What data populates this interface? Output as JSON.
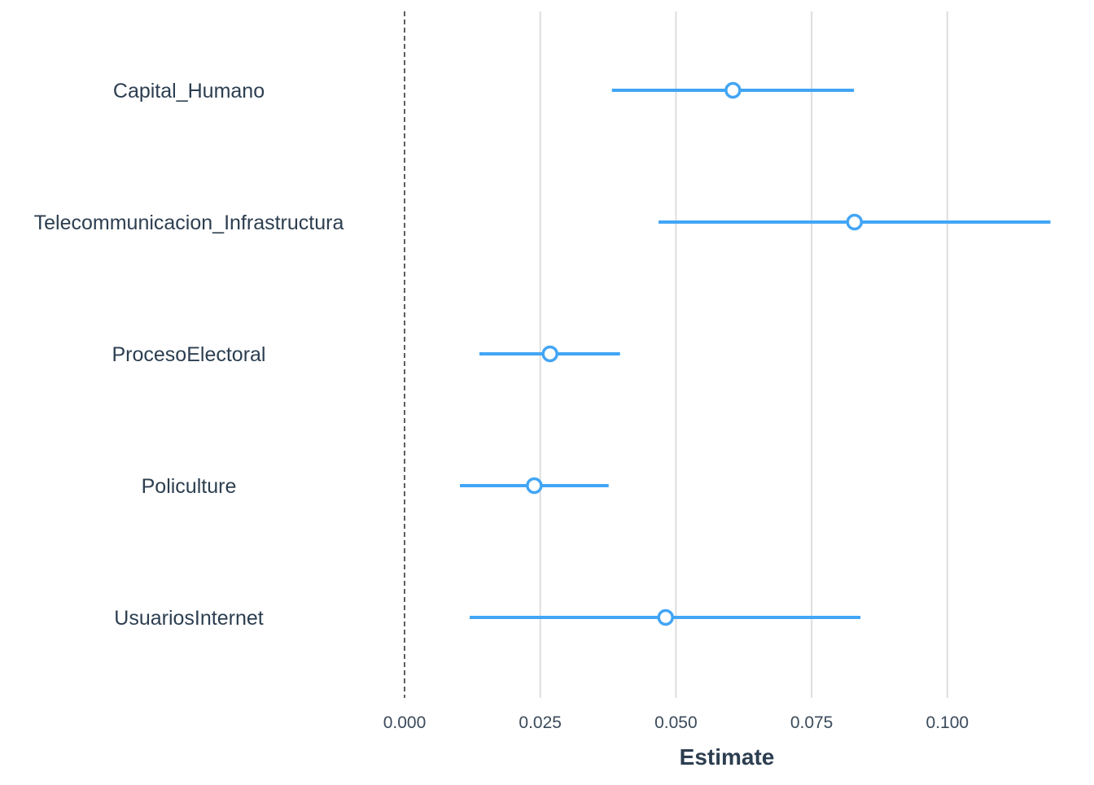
{
  "chart_data": {
    "type": "scatter",
    "subtype": "coefficient-plot",
    "title": "",
    "xlabel": "Estimate",
    "ylabel": "",
    "xlim": [
      0.0,
      0.1195
    ],
    "x_ticks": [
      "0.000",
      "0.025",
      "0.050",
      "0.075",
      "0.100"
    ],
    "x_tick_values": [
      0.0,
      0.025,
      0.05,
      0.075,
      0.1
    ],
    "reference_line": 0.0,
    "grid": "vertical",
    "legend": "none",
    "color": "#42a5f5",
    "terms": [
      {
        "name": "Capital_Humano",
        "estimate": 0.0605,
        "conf_low": 0.0382,
        "conf_high": 0.0828
      },
      {
        "name": "Telecommunicacion_Infrastructura",
        "estimate": 0.0829,
        "conf_low": 0.0468,
        "conf_high": 0.119
      },
      {
        "name": "ProcesoElectoral",
        "estimate": 0.0268,
        "conf_low": 0.0138,
        "conf_high": 0.0397
      },
      {
        "name": "Policulture",
        "estimate": 0.0239,
        "conf_low": 0.0102,
        "conf_high": 0.0376
      },
      {
        "name": "UsuariosInternet",
        "estimate": 0.0481,
        "conf_low": 0.012,
        "conf_high": 0.084
      }
    ]
  }
}
